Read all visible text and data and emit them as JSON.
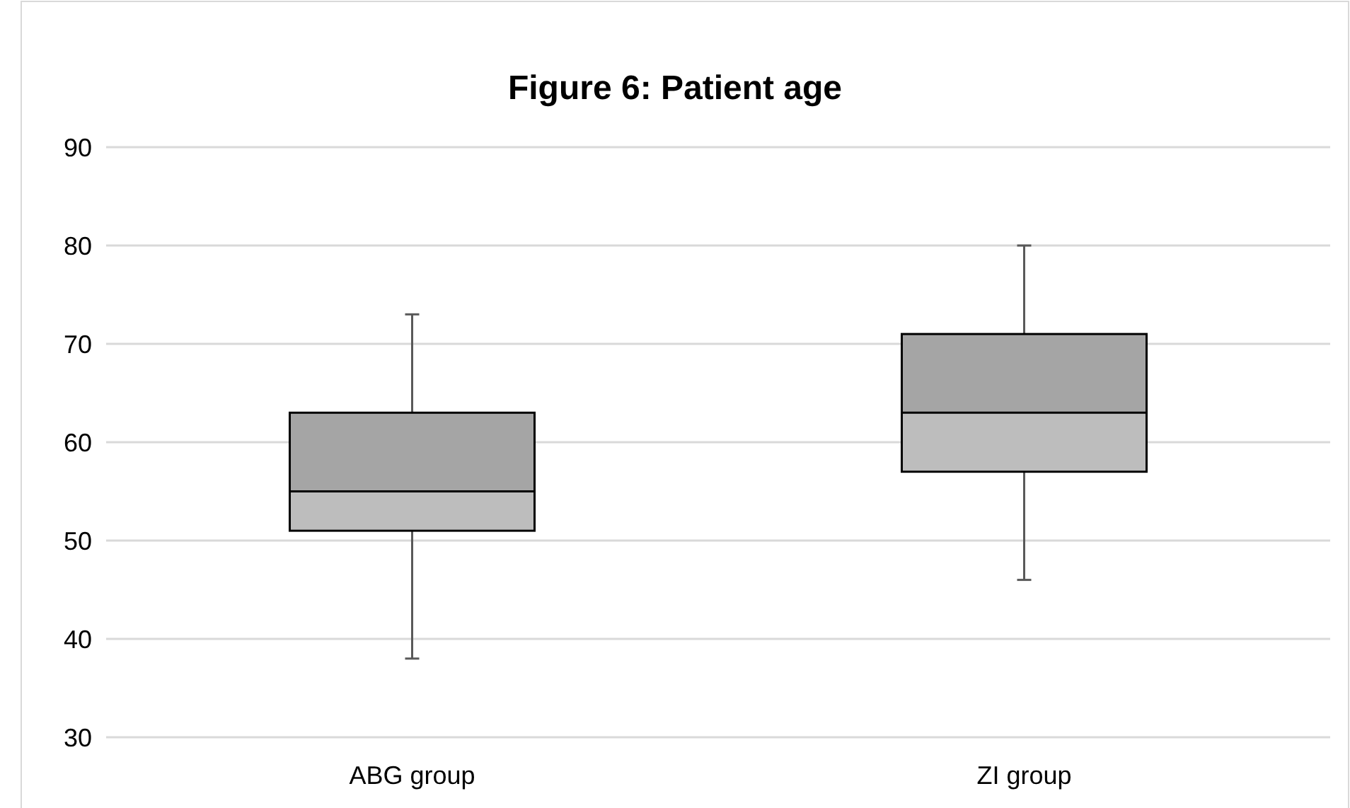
{
  "chart_data": {
    "type": "box",
    "title": "Figure 6: Patient age",
    "categories": [
      "ABG group",
      "ZI group"
    ],
    "series": [
      {
        "color": "#a5a5a5",
        "boxes": [
          {
            "low": 38,
            "q1": 51,
            "median": 55,
            "q3": 63,
            "high": 73
          },
          {
            "low": 46,
            "q1": 57,
            "median": 63,
            "q3": 71,
            "high": 80
          }
        ]
      }
    ],
    "ylim": [
      30,
      90
    ],
    "yticks": [
      30,
      40,
      50,
      60,
      70,
      80,
      90
    ],
    "grid": "y"
  }
}
